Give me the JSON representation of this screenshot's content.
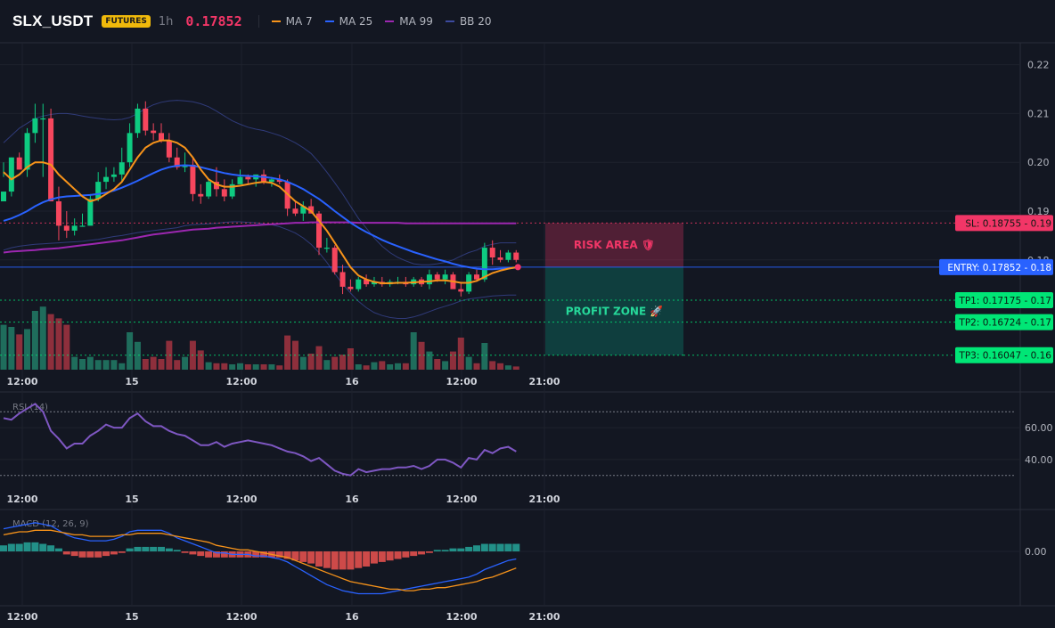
{
  "header": {
    "symbol": "SLX_USDT",
    "badge": "FUTURES",
    "timeframe": "1h",
    "last_price": "0.17852",
    "legend": [
      {
        "label": "MA 7",
        "color": "#f7931a"
      },
      {
        "label": "MA 25",
        "color": "#2962ff"
      },
      {
        "label": "MA 99",
        "color": "#9c27b0"
      },
      {
        "label": "BB 20",
        "color": "#3c4a9e"
      }
    ]
  },
  "chart_data": [
    {
      "type": "candlestick",
      "title": "SLX_USDT 1h",
      "x_ticks": [
        "12:00",
        "15",
        "12:00",
        "16",
        "12:00",
        "21:00"
      ],
      "y_ticks": [
        "0.22",
        "0.21",
        "0.20",
        "0.19",
        "0.18"
      ],
      "ylim": [
        0.1575,
        0.2245
      ],
      "candles": [
        [
          0.192,
          0.197,
          0.194,
          0.2
        ],
        [
          0.194,
          0.193,
          0.201,
          0.201
        ],
        [
          0.201,
          0.1995,
          0.1985,
          0.202
        ],
        [
          0.1985,
          0.197,
          0.206,
          0.207
        ],
        [
          0.206,
          0.204,
          0.209,
          0.212
        ],
        [
          0.209,
          0.197,
          0.209,
          0.212
        ],
        [
          0.209,
          0.194,
          0.192,
          0.211
        ],
        [
          0.192,
          0.184,
          0.187,
          0.195
        ],
        [
          0.187,
          0.1845,
          0.186,
          0.19
        ],
        [
          0.186,
          0.185,
          0.187,
          0.1885
        ],
        [
          0.187,
          0.187,
          0.187,
          0.1895
        ],
        [
          0.187,
          0.188,
          0.1925,
          0.1935
        ],
        [
          0.1925,
          0.192,
          0.196,
          0.198
        ],
        [
          0.196,
          0.1945,
          0.197,
          0.199
        ],
        [
          0.197,
          0.196,
          0.1975,
          0.199
        ],
        [
          0.1975,
          0.196,
          0.2,
          0.203
        ],
        [
          0.2,
          0.199,
          0.206,
          0.208
        ],
        [
          0.206,
          0.205,
          0.211,
          0.212
        ],
        [
          0.211,
          0.2055,
          0.2065,
          0.2125
        ],
        [
          0.2065,
          0.2045,
          0.206,
          0.208
        ],
        [
          0.206,
          0.204,
          0.2045,
          0.208
        ],
        [
          0.2045,
          0.2,
          0.201,
          0.206
        ],
        [
          0.201,
          0.1985,
          0.199,
          0.203
        ],
        [
          0.199,
          0.198,
          0.1995,
          0.202
        ],
        [
          0.1995,
          0.192,
          0.1935,
          0.201
        ],
        [
          0.1935,
          0.1915,
          0.193,
          0.1955
        ],
        [
          0.193,
          0.1925,
          0.196,
          0.1965
        ],
        [
          0.196,
          0.193,
          0.1945,
          0.199
        ],
        [
          0.1945,
          0.192,
          0.193,
          0.1965
        ],
        [
          0.193,
          0.1925,
          0.1955,
          0.1965
        ],
        [
          0.1955,
          0.1955,
          0.197,
          0.1985
        ],
        [
          0.197,
          0.1955,
          0.1965,
          0.1975
        ],
        [
          0.1965,
          0.195,
          0.1975,
          0.1975
        ],
        [
          0.1975,
          0.1955,
          0.196,
          0.1985
        ],
        [
          0.196,
          0.195,
          0.1965,
          0.197
        ],
        [
          0.1965,
          0.1955,
          0.196,
          0.1975
        ],
        [
          0.196,
          0.189,
          0.1905,
          0.1965
        ],
        [
          0.1905,
          0.189,
          0.1895,
          0.192
        ],
        [
          0.1895,
          0.188,
          0.191,
          0.192
        ],
        [
          0.191,
          0.1895,
          0.1895,
          0.1925
        ],
        [
          0.1895,
          0.181,
          0.1825,
          0.19
        ],
        [
          0.1825,
          0.1815,
          0.1825,
          0.1845
        ],
        [
          0.1825,
          0.177,
          0.1775,
          0.183
        ],
        [
          0.1775,
          0.173,
          0.1745,
          0.179
        ],
        [
          0.1745,
          0.1735,
          0.174,
          0.176
        ],
        [
          0.174,
          0.1735,
          0.176,
          0.1765
        ],
        [
          0.176,
          0.1745,
          0.175,
          0.177
        ],
        [
          0.175,
          0.1745,
          0.1755,
          0.1765
        ],
        [
          0.1755,
          0.1745,
          0.175,
          0.1765
        ],
        [
          0.175,
          0.1745,
          0.1755,
          0.176
        ],
        [
          0.1755,
          0.175,
          0.1755,
          0.1765
        ],
        [
          0.1755,
          0.1745,
          0.175,
          0.1765
        ],
        [
          0.175,
          0.1745,
          0.176,
          0.1765
        ],
        [
          0.176,
          0.1745,
          0.175,
          0.1765
        ],
        [
          0.175,
          0.174,
          0.177,
          0.178
        ],
        [
          0.177,
          0.1755,
          0.176,
          0.1775
        ],
        [
          0.176,
          0.175,
          0.177,
          0.178
        ],
        [
          0.177,
          0.1745,
          0.174,
          0.1775
        ],
        [
          0.174,
          0.1725,
          0.1735,
          0.1755
        ],
        [
          0.1735,
          0.173,
          0.177,
          0.1775
        ],
        [
          0.177,
          0.1755,
          0.176,
          0.178
        ],
        [
          0.176,
          0.1755,
          0.1825,
          0.1835
        ],
        [
          0.1825,
          0.179,
          0.1805,
          0.184
        ],
        [
          0.1805,
          0.1795,
          0.18,
          0.182
        ],
        [
          0.18,
          0.1795,
          0.1815,
          0.182
        ],
        [
          0.1815,
          0.1795,
          0.18,
          0.182
        ]
      ],
      "ma7": [
        0.198,
        0.1965,
        0.1975,
        0.199,
        0.2,
        0.2,
        0.1995,
        0.1975,
        0.196,
        0.1945,
        0.193,
        0.192,
        0.1925,
        0.1935,
        0.1945,
        0.196,
        0.1985,
        0.201,
        0.203,
        0.204,
        0.2045,
        0.2045,
        0.204,
        0.203,
        0.201,
        0.1985,
        0.1965,
        0.1955,
        0.195,
        0.195,
        0.1952,
        0.1955,
        0.1958,
        0.196,
        0.1958,
        0.195,
        0.1935,
        0.192,
        0.191,
        0.19,
        0.188,
        0.186,
        0.1835,
        0.181,
        0.1785,
        0.1768,
        0.176,
        0.1755,
        0.1752,
        0.1752,
        0.1753,
        0.1753,
        0.1754,
        0.1755,
        0.1756,
        0.1758,
        0.1758,
        0.1756,
        0.1753,
        0.1753,
        0.1757,
        0.1765,
        0.1773,
        0.1778,
        0.1782,
        0.1785
      ],
      "ma25": [
        0.188,
        0.1885,
        0.1892,
        0.19,
        0.191,
        0.1918,
        0.1924,
        0.1928,
        0.193,
        0.1931,
        0.1932,
        0.1933,
        0.1935,
        0.1938,
        0.1942,
        0.1948,
        0.1955,
        0.1962,
        0.197,
        0.1978,
        0.1985,
        0.199,
        0.1993,
        0.1994,
        0.1993,
        0.199,
        0.1986,
        0.1982,
        0.1978,
        0.1975,
        0.1973,
        0.1972,
        0.1971,
        0.197,
        0.1968,
        0.1965,
        0.196,
        0.1953,
        0.1945,
        0.1935,
        0.1925,
        0.1913,
        0.19,
        0.1888,
        0.1876,
        0.1866,
        0.1857,
        0.1849,
        0.1841,
        0.1834,
        0.1828,
        0.1822,
        0.1816,
        0.1811,
        0.1806,
        0.1801,
        0.1797,
        0.1792,
        0.1788,
        0.1785,
        0.1782,
        0.1781,
        0.1781,
        0.1782,
        0.1783,
        0.1784
      ],
      "ma99": [
        0.1815,
        0.1817,
        0.1818,
        0.1819,
        0.182,
        0.1822,
        0.1823,
        0.1824,
        0.1826,
        0.1828,
        0.183,
        0.1832,
        0.1834,
        0.1836,
        0.1838,
        0.184,
        0.1843,
        0.1846,
        0.1849,
        0.1852,
        0.1854,
        0.1856,
        0.1858,
        0.186,
        0.1862,
        0.1863,
        0.1864,
        0.1866,
        0.1867,
        0.1868,
        0.1869,
        0.187,
        0.1871,
        0.1872,
        0.1873,
        0.1874,
        0.1875,
        0.1876,
        0.1876,
        0.1877,
        0.1877,
        0.1877,
        0.1877,
        0.1877,
        0.1877,
        0.1876,
        0.1876,
        0.1876,
        0.1876,
        0.1876,
        0.1876,
        0.1875,
        0.1875,
        0.1875,
        0.1875,
        0.1875,
        0.1875,
        0.1875,
        0.1875,
        0.1875,
        0.1875,
        0.1875,
        0.1875,
        0.1875,
        0.1875,
        0.1875
      ],
      "bb_upper": [
        0.204,
        0.2055,
        0.207,
        0.208,
        0.209,
        0.2095,
        0.2098,
        0.21,
        0.21,
        0.2098,
        0.2095,
        0.2092,
        0.209,
        0.2088,
        0.2087,
        0.2088,
        0.2092,
        0.21,
        0.211,
        0.2118,
        0.2123,
        0.2126,
        0.2127,
        0.2126,
        0.2124,
        0.212,
        0.2114,
        0.2105,
        0.2095,
        0.2085,
        0.2078,
        0.2072,
        0.2068,
        0.2065,
        0.206,
        0.2055,
        0.2048,
        0.204,
        0.203,
        0.2018,
        0.2,
        0.198,
        0.1958,
        0.1935,
        0.191,
        0.1885,
        0.1865,
        0.1845,
        0.1828,
        0.1815,
        0.1805,
        0.1798,
        0.1792,
        0.179,
        0.179,
        0.1792,
        0.1795,
        0.18,
        0.1808,
        0.1815,
        0.182,
        0.1828,
        0.1832,
        0.1835,
        0.1835,
        0.1835
      ],
      "bb_lower": [
        0.182,
        0.1825,
        0.1828,
        0.183,
        0.1832,
        0.1833,
        0.1834,
        0.1835,
        0.1836,
        0.1837,
        0.1838,
        0.184,
        0.1842,
        0.1845,
        0.1848,
        0.185,
        0.1853,
        0.1856,
        0.1858,
        0.186,
        0.1862,
        0.1864,
        0.1866,
        0.187,
        0.1872,
        0.1873,
        0.1874,
        0.1875,
        0.1877,
        0.1878,
        0.1878,
        0.1877,
        0.1876,
        0.1874,
        0.1872,
        0.1868,
        0.1862,
        0.1855,
        0.1845,
        0.1832,
        0.1815,
        0.1795,
        0.1772,
        0.175,
        0.1732,
        0.1715,
        0.1702,
        0.1692,
        0.1686,
        0.1682,
        0.168,
        0.168,
        0.1683,
        0.1688,
        0.1694,
        0.17,
        0.1705,
        0.171,
        0.1716,
        0.172,
        0.1722,
        0.1724,
        0.1726,
        0.1727,
        0.1728,
        0.1728
      ],
      "volume": [
        0.42,
        0.4,
        0.33,
        0.38,
        0.55,
        0.59,
        0.52,
        0.48,
        0.42,
        0.12,
        0.1,
        0.12,
        0.09,
        0.09,
        0.09,
        0.06,
        0.35,
        0.26,
        0.1,
        0.12,
        0.1,
        0.27,
        0.09,
        0.12,
        0.27,
        0.18,
        0.07,
        0.06,
        0.06,
        0.05,
        0.06,
        0.05,
        0.05,
        0.05,
        0.05,
        0.04,
        0.32,
        0.27,
        0.12,
        0.15,
        0.22,
        0.09,
        0.12,
        0.14,
        0.2,
        0.05,
        0.04,
        0.07,
        0.08,
        0.05,
        0.06,
        0.06,
        0.35,
        0.26,
        0.17,
        0.1,
        0.08,
        0.17,
        0.3,
        0.12,
        0.06,
        0.25,
        0.08,
        0.06,
        0.04,
        0.03
      ],
      "levels": [
        {
          "label": "SL: 0.18755",
          "axis": "0.19",
          "value": 0.18755,
          "color": "#f23667"
        },
        {
          "label": "ENTRY: 0.17852",
          "axis": "0.18",
          "value": 0.17852,
          "color": "#2962ff"
        },
        {
          "label": "TP1: 0.17175",
          "axis": "0.17",
          "value": 0.17175,
          "color": "#00e676"
        },
        {
          "label": "TP2: 0.16724",
          "axis": "0.17",
          "value": 0.16724,
          "color": "#00e676"
        },
        {
          "label": "TP3: 0.16047",
          "axis": "0.16",
          "value": 0.16047,
          "color": "#00e676"
        }
      ],
      "zones": {
        "risk": "RISK AREA 🛡",
        "profit": "PROFIT ZONE 🚀"
      }
    },
    {
      "type": "line",
      "title": "RSI (14)",
      "y_ticks": [
        "60.00",
        "40.00"
      ],
      "ylim": [
        22,
        78
      ],
      "bands": [
        70,
        30
      ],
      "x_ticks": [
        "12:00",
        "15",
        "12:00",
        "16",
        "12:00",
        "21:00"
      ],
      "values": [
        66,
        65,
        69,
        72,
        75,
        70,
        58,
        53,
        47,
        50,
        50,
        55,
        58,
        62,
        60,
        60,
        66,
        69,
        64,
        61,
        61,
        58,
        56,
        55,
        52,
        49,
        49,
        51,
        48,
        50,
        51,
        52,
        51,
        50,
        49,
        47,
        45,
        44,
        42,
        39,
        41,
        37,
        33,
        31,
        30,
        34,
        32,
        33,
        34,
        34,
        35,
        35,
        36,
        34,
        36,
        40,
        40,
        38,
        35,
        41,
        40,
        46,
        44,
        47,
        48,
        45
      ]
    },
    {
      "type": "bar",
      "title": "MACD (12, 26, 9)",
      "y_ticks": [
        "0.00"
      ],
      "ylim": [
        -0.0033,
        0.0023
      ],
      "x_ticks": [
        "12:00",
        "15",
        "12:00",
        "16",
        "12:00",
        "21:00"
      ],
      "histogram": [
        0.0004,
        0.0005,
        0.0005,
        0.0006,
        0.0006,
        0.0005,
        0.0004,
        0.0002,
        -0.0002,
        -0.0003,
        -0.0004,
        -0.0004,
        -0.0004,
        -0.0003,
        -0.0002,
        -0.0001,
        0.0002,
        0.0003,
        0.0003,
        0.0003,
        0.0003,
        0.0002,
        0.0001,
        -0.0001,
        -0.0002,
        -0.0003,
        -0.0004,
        -0.0004,
        -0.0004,
        -0.0004,
        -0.0004,
        -0.0004,
        -0.0004,
        -0.0004,
        -0.0004,
        -0.0004,
        -0.0005,
        -0.0006,
        -0.0007,
        -0.0008,
        -0.001,
        -0.0011,
        -0.0012,
        -0.0012,
        -0.0012,
        -0.0011,
        -0.001,
        -0.0008,
        -0.0007,
        -0.0006,
        -0.0005,
        -0.0004,
        -0.0003,
        -0.0002,
        -0.0001,
        0.0001,
        0.0001,
        0.0002,
        0.0002,
        0.0003,
        0.0004,
        0.0005,
        0.0005,
        0.0005,
        0.0005,
        0.0005
      ],
      "macd": [
        0.0015,
        0.0016,
        0.0017,
        0.0018,
        0.0019,
        0.0018,
        0.0017,
        0.0014,
        0.0011,
        0.0009,
        0.0008,
        0.0007,
        0.0007,
        0.0007,
        0.0008,
        0.001,
        0.0013,
        0.0014,
        0.0014,
        0.0014,
        0.0014,
        0.0012,
        0.0009,
        0.0007,
        0.0005,
        0.0003,
        0.0001,
        -0.0001,
        -0.0001,
        -0.0002,
        -0.0002,
        -0.0002,
        -0.0003,
        -0.0003,
        -0.0004,
        -0.0005,
        -0.0007,
        -0.001,
        -0.0013,
        -0.0016,
        -0.0019,
        -0.0022,
        -0.0024,
        -0.0026,
        -0.0027,
        -0.0028,
        -0.0028,
        -0.0028,
        -0.0028,
        -0.0027,
        -0.0026,
        -0.0025,
        -0.0024,
        -0.0023,
        -0.0022,
        -0.0021,
        -0.002,
        -0.0019,
        -0.0018,
        -0.0017,
        -0.0015,
        -0.0012,
        -0.001,
        -0.0008,
        -0.0006,
        -0.0005
      ],
      "signal": [
        0.0011,
        0.0012,
        0.0013,
        0.0013,
        0.0014,
        0.0014,
        0.0014,
        0.0013,
        0.0012,
        0.0011,
        0.0011,
        0.001,
        0.001,
        0.001,
        0.001,
        0.0011,
        0.0011,
        0.0012,
        0.0012,
        0.0012,
        0.0012,
        0.0011,
        0.001,
        0.0009,
        0.0008,
        0.0007,
        0.0006,
        0.0004,
        0.0003,
        0.0002,
        0.0001,
        0.0001,
        0.0,
        -0.0001,
        -0.0002,
        -0.0003,
        -0.0004,
        -0.0006,
        -0.0008,
        -0.001,
        -0.0012,
        -0.0014,
        -0.0016,
        -0.0018,
        -0.002,
        -0.0021,
        -0.0022,
        -0.0023,
        -0.0024,
        -0.0025,
        -0.0025,
        -0.0026,
        -0.0026,
        -0.0025,
        -0.0025,
        -0.0024,
        -0.0024,
        -0.0023,
        -0.0022,
        -0.0021,
        -0.002,
        -0.0018,
        -0.0017,
        -0.0015,
        -0.0013,
        -0.0011
      ]
    }
  ]
}
